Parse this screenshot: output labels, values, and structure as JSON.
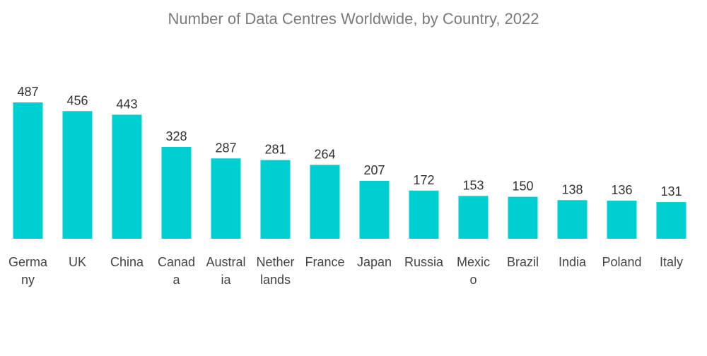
{
  "chart_data": {
    "type": "bar",
    "title": "Number of Data Centres Worldwide, by Country, 2022",
    "categories": [
      "Germany",
      "UK",
      "China",
      "Canada",
      "Australia",
      "Netherlands",
      "France",
      "Japan",
      "Russia",
      "Mexico",
      "Brazil",
      "India",
      "Poland",
      "Italy"
    ],
    "category_lines": [
      [
        "Germa",
        "ny"
      ],
      [
        "UK"
      ],
      [
        "China"
      ],
      [
        "Canad",
        "a"
      ],
      [
        "Austral",
        "ia"
      ],
      [
        "Nether",
        "lands"
      ],
      [
        "France"
      ],
      [
        "Japan"
      ],
      [
        "Russia"
      ],
      [
        "Mexic",
        "o"
      ],
      [
        "Brazil"
      ],
      [
        "India"
      ],
      [
        "Poland"
      ],
      [
        "Italy"
      ]
    ],
    "values": [
      487,
      456,
      443,
      328,
      287,
      281,
      264,
      207,
      172,
      153,
      150,
      138,
      136,
      131
    ],
    "xlabel": "",
    "ylabel": "",
    "ylim": [
      0,
      487
    ],
    "grid": false,
    "legend": "none",
    "bar_color": "#00cfd1"
  }
}
